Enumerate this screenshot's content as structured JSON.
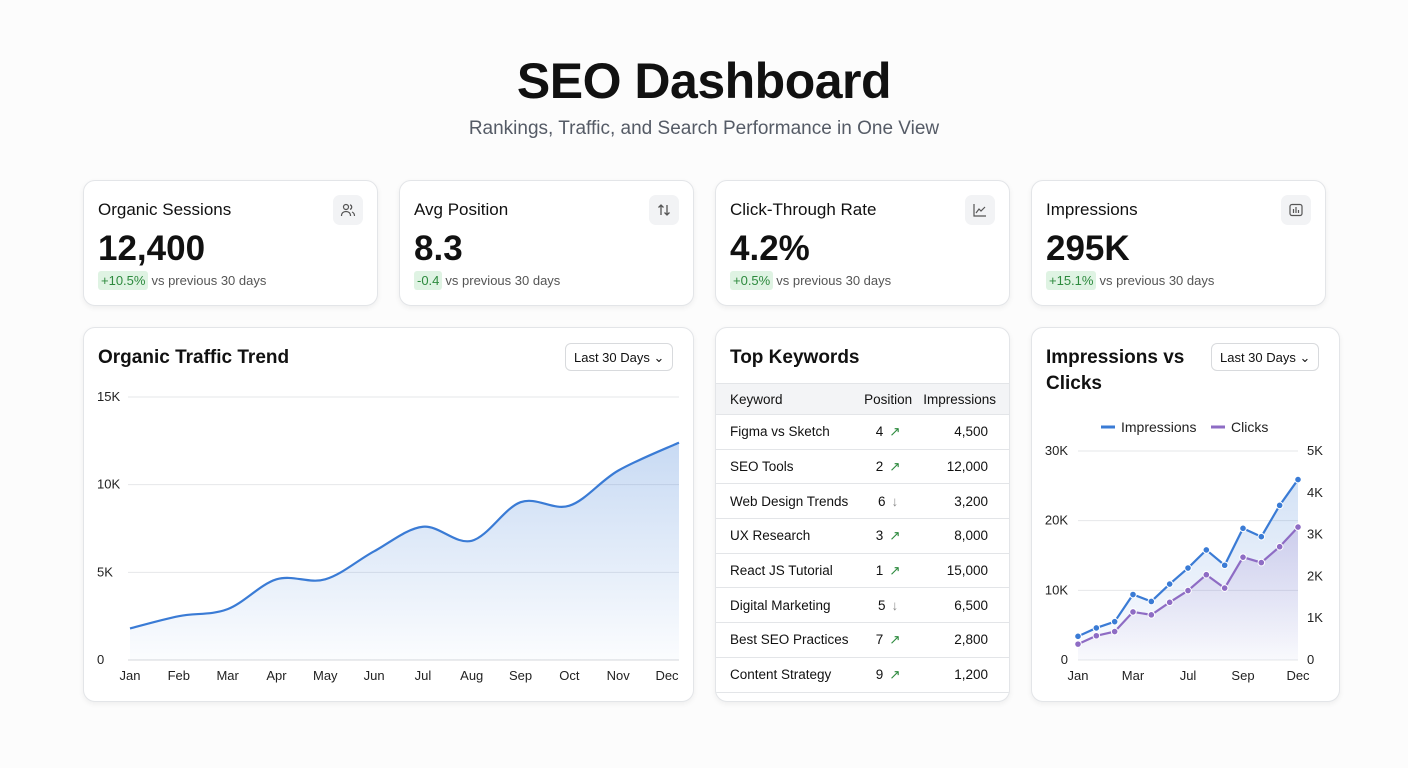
{
  "header": {
    "title": "SEO Dashboard",
    "subtitle": "Rankings, Traffic, and Search Performance in One View"
  },
  "kpis": [
    {
      "title": "Organic Sessions",
      "value": "12,400",
      "delta": "+10.5%",
      "note": "vs previous 30 days",
      "icon": "users-icon"
    },
    {
      "title": "Avg Position",
      "value": "8.3",
      "delta": "-0.4",
      "note": "vs previous 30 days",
      "icon": "sort-arrows-icon"
    },
    {
      "title": "Click-Through Rate",
      "value": "4.2%",
      "delta": "+0.5%",
      "note": "vs previous 30 days",
      "icon": "line-chart-icon"
    },
    {
      "title": "Impressions",
      "value": "295K",
      "delta": "+15.1%",
      "note": "vs previous 30 days",
      "icon": "bar-chart-icon"
    }
  ],
  "traffic": {
    "title": "Organic Traffic Trend",
    "range": "Last 30 Days"
  },
  "keywords": {
    "title": "Top Keywords",
    "columns": [
      "Keyword",
      "Position",
      "Impressions"
    ],
    "rows": [
      {
        "keyword": "Figma vs Sketch",
        "position": "4",
        "trend": "up",
        "impressions": "4,500"
      },
      {
        "keyword": "SEO Tools",
        "position": "2",
        "trend": "up",
        "impressions": "12,000"
      },
      {
        "keyword": "Web Design Trends",
        "position": "6",
        "trend": "down",
        "impressions": "3,200"
      },
      {
        "keyword": "UX Research",
        "position": "3",
        "trend": "up",
        "impressions": "8,000"
      },
      {
        "keyword": "React JS Tutorial",
        "position": "1",
        "trend": "up",
        "impressions": "15,000"
      },
      {
        "keyword": "Digital Marketing",
        "position": "5",
        "trend": "down",
        "impressions": "6,500"
      },
      {
        "keyword": "Best SEO Practices",
        "position": "7",
        "trend": "up",
        "impressions": "2,800"
      },
      {
        "keyword": "Content Strategy",
        "position": "9",
        "trend": "up",
        "impressions": "1,200"
      }
    ],
    "up_glyph": "↗",
    "down_glyph": "↓",
    "up_color": "#2d8a3e"
  },
  "impclicks": {
    "title": "Impressions vs Clicks",
    "range": "Last 30 Days"
  },
  "chart_data": [
    {
      "type": "area",
      "categories": [
        "Jan",
        "Feb",
        "Mar",
        "Apr",
        "May",
        "Jun",
        "Jul",
        "Aug",
        "Sep",
        "Oct",
        "Nov",
        "Dec"
      ],
      "values": [
        1800,
        2500,
        2900,
        4600,
        4600,
        6200,
        7600,
        6800,
        9000,
        8800,
        10800,
        12400
      ],
      "ylim": [
        0,
        15000
      ],
      "yticks": [
        "0",
        "5K",
        "10K",
        "15K"
      ],
      "grid": true,
      "color": "#3a7bd5"
    },
    {
      "type": "line",
      "x_tick_labels": [
        "Jan",
        "Mar",
        "Jul",
        "Sep",
        "Dec"
      ],
      "series": [
        {
          "name": "Impressions",
          "axis": "left",
          "color": "#3a7bd5",
          "values": [
            3400,
            4600,
            5500,
            9400,
            8400,
            10900,
            13200,
            15800,
            13600,
            18900,
            17700,
            22200,
            25900
          ]
        },
        {
          "name": "Clicks",
          "axis": "right",
          "color": "#8e6cc4",
          "values": [
            380,
            580,
            680,
            1150,
            1080,
            1380,
            1660,
            2040,
            1720,
            2460,
            2330,
            2710,
            3180
          ]
        }
      ],
      "ylim_left": [
        0,
        30000
      ],
      "ylim_right": [
        0,
        5000
      ],
      "yticks_left": [
        "0",
        "10K",
        "20K",
        "30K"
      ],
      "yticks_right": [
        "0",
        "1K",
        "2K",
        "3K",
        "4K",
        "5K"
      ],
      "legend": "top",
      "grid": true
    }
  ]
}
